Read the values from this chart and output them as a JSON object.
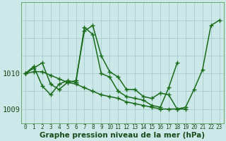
{
  "xlabel": "Graphe pression niveau de la mer (hPa)",
  "background_color": "#cce8e8",
  "grid_color": "#a8cccc",
  "line_color": "#1a6b1a",
  "xlim": [
    -0.5,
    23.5
  ],
  "ylim": [
    1008.6,
    1012.0
  ],
  "yticks": [
    1009,
    1010
  ],
  "xticks": [
    0,
    1,
    2,
    3,
    4,
    5,
    6,
    7,
    8,
    9,
    10,
    11,
    12,
    13,
    14,
    15,
    16,
    17,
    18,
    19,
    20,
    21,
    22,
    23
  ],
  "series": [
    [
      1010.0,
      1010.15,
      1010.3,
      1009.7,
      1009.55,
      1009.75,
      1009.8,
      1011.2,
      1011.35,
      1010.5,
      1010.05,
      1009.9,
      1009.55,
      1009.55,
      1009.35,
      1009.3,
      1009.45,
      1009.4,
      1009.0,
      1009.05,
      1009.55,
      1010.1,
      1011.35,
      1011.5
    ],
    [
      1010.0,
      1010.05,
      1010.05,
      1009.95,
      1009.85,
      1009.75,
      1009.7,
      1009.6,
      1009.5,
      1009.4,
      1009.35,
      1009.3,
      1009.2,
      1009.15,
      1009.1,
      1009.05,
      1009.0,
      1009.0,
      1009.0,
      1009.0,
      null,
      null,
      null,
      null
    ],
    [
      1010.0,
      1010.2,
      1009.65,
      1009.4,
      1009.7,
      1009.8,
      1009.75,
      1011.3,
      1011.1,
      1010.0,
      1009.9,
      1009.5,
      1009.35,
      1009.3,
      1009.25,
      1009.1,
      1009.05,
      1009.6,
      1010.3,
      null,
      null,
      null,
      null,
      null
    ]
  ],
  "marker": "+",
  "markersize": 4,
  "linewidth": 1.1,
  "fontsize_tick": 5.5,
  "fontsize_ylabel": 7.5,
  "fontsize_xlabel": 7.5
}
